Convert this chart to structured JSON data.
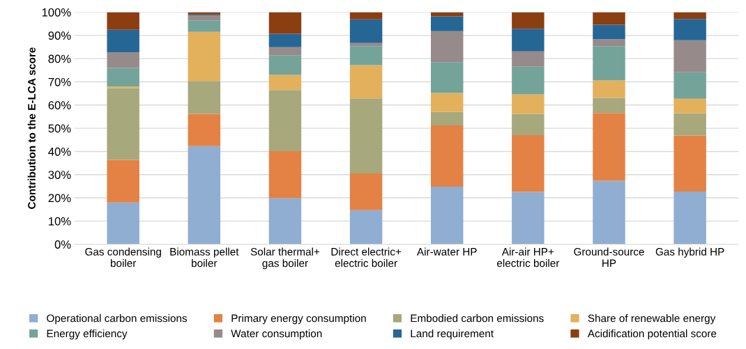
{
  "chart_data": {
    "type": "bar",
    "stacked": true,
    "ylabel": "Contribution to the E-LCA score",
    "categories": [
      "Gas condensing\nboiler",
      "Biomass pellet\nboiler",
      "Solar thermal+\ngas boiler",
      "Direct electric+\nelectric boiler",
      "Air-water HP",
      "Air-air HP+\nelectric boiler",
      "Ground-source\nHP",
      "Gas hybrid HP"
    ],
    "series": [
      {
        "name": "Operational carbon emissions",
        "color": "#8faed1",
        "values": [
          18.0,
          42.3,
          19.9,
          14.7,
          24.8,
          22.6,
          27.4,
          22.7
        ]
      },
      {
        "name": "Primary energy consumption",
        "color": "#e38244",
        "values": [
          18.4,
          13.9,
          20.2,
          15.8,
          26.4,
          24.4,
          29.2,
          24.2
        ]
      },
      {
        "name": "Embodied carbon emissions",
        "color": "#a7a87c",
        "values": [
          30.9,
          14.2,
          26.4,
          32.4,
          5.8,
          9.2,
          6.5,
          9.5
        ]
      },
      {
        "name": "Share of renewable energy",
        "color": "#e3b05c",
        "values": [
          0.7,
          21.1,
          6.5,
          14.3,
          8.2,
          8.4,
          7.5,
          6.3
        ]
      },
      {
        "name": "Energy efficiency",
        "color": "#74a39a",
        "values": [
          8.0,
          5.0,
          8.5,
          8.2,
          13.3,
          11.9,
          14.8,
          11.4
        ]
      },
      {
        "name": "Water consumption",
        "color": "#968b8a",
        "values": [
          6.7,
          2.1,
          3.4,
          1.3,
          13.3,
          6.6,
          3.0,
          13.8
        ]
      },
      {
        "name": "Land requirement",
        "color": "#266695",
        "values": [
          9.7,
          0.4,
          5.8,
          10.2,
          6.4,
          9.8,
          6.2,
          9.2
        ]
      },
      {
        "name": "Acidification potential score",
        "color": "#8b3e10",
        "values": [
          7.6,
          1.0,
          9.3,
          3.1,
          1.8,
          7.1,
          5.4,
          2.9
        ]
      }
    ],
    "ylim": [
      0,
      100
    ],
    "yticks": [
      {
        "value": 0,
        "label": "0%"
      },
      {
        "value": 10,
        "label": "10%"
      },
      {
        "value": 20,
        "label": "20%"
      },
      {
        "value": 30,
        "label": "30%"
      },
      {
        "value": 40,
        "label": "40%"
      },
      {
        "value": 50,
        "label": "50%"
      },
      {
        "value": 60,
        "label": "60%"
      },
      {
        "value": 70,
        "label": "70%"
      },
      {
        "value": 80,
        "label": "80%"
      },
      {
        "value": 90,
        "label": "90%"
      },
      {
        "value": 100,
        "label": "100%"
      }
    ],
    "grid": "y",
    "legend": "bottom"
  }
}
